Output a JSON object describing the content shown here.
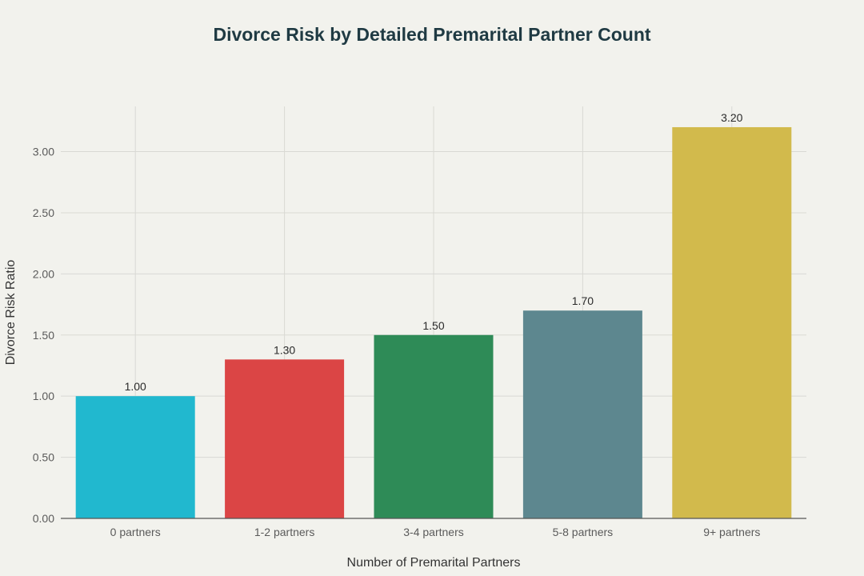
{
  "chart_data": {
    "type": "bar",
    "title": "Divorce Risk by Detailed Premarital Partner Count",
    "xlabel": "Number of Premarital Partners",
    "ylabel": "Divorce Risk Ratio",
    "categories": [
      "0 partners",
      "1-2 partners",
      "3-4 partners",
      "5-8 partners",
      "9+ partners"
    ],
    "values": [
      1.0,
      1.3,
      1.5,
      1.7,
      3.2
    ],
    "value_labels": [
      "1.00",
      "1.30",
      "1.50",
      "1.70",
      "3.20"
    ],
    "bar_colors": [
      "#21b8cf",
      "#db4545",
      "#2e8b57",
      "#5d878f",
      "#d2ba4c"
    ],
    "y_ticks": [
      0,
      0.5,
      1.0,
      1.5,
      2.0,
      2.5,
      3.0
    ],
    "y_tick_labels": [
      "0.00",
      "0.50",
      "1.00",
      "1.50",
      "2.00",
      "2.50",
      "3.00"
    ],
    "ylim": [
      0,
      3.37
    ],
    "grid": true,
    "legend": "none"
  }
}
